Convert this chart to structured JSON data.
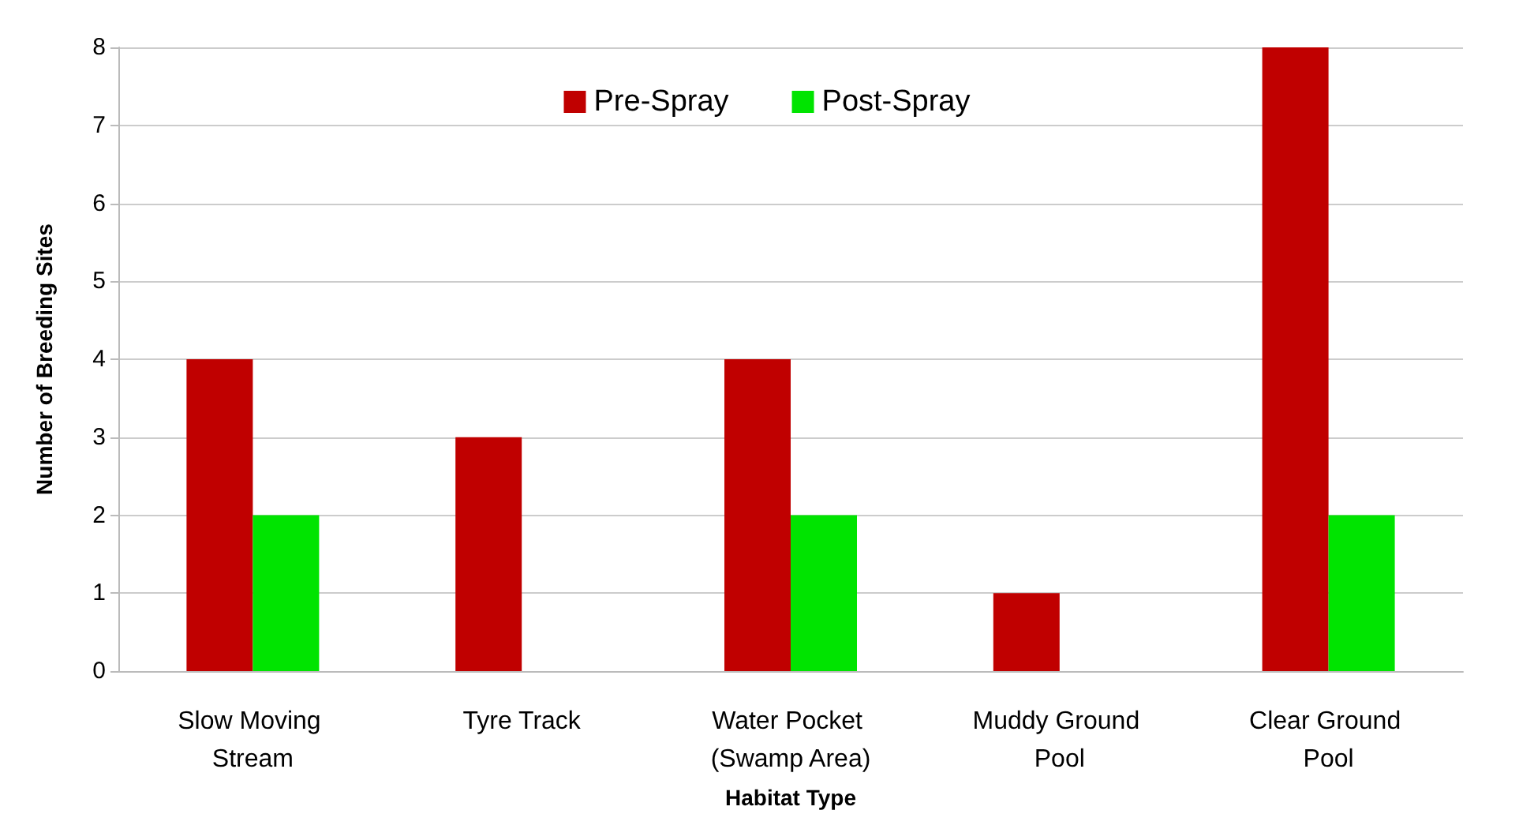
{
  "chart_data": {
    "type": "bar",
    "xlabel": "Habitat Type",
    "ylabel": "Number of Breeding Sites",
    "categories": [
      "Slow Moving Stream",
      "Tyre Track",
      "Water Pocket (Swamp Area)",
      "Muddy Ground Pool",
      "Clear Ground Pool"
    ],
    "series": [
      {
        "name": "Pre-Spray",
        "color": "#c00000",
        "values": [
          4,
          3,
          4,
          1,
          8
        ]
      },
      {
        "name": "Post-Spray",
        "color": "#00e400",
        "values": [
          2,
          0,
          2,
          0,
          2
        ]
      }
    ],
    "ylim": [
      0,
      8
    ],
    "yticks": [
      0,
      1,
      2,
      3,
      4,
      5,
      6,
      7,
      8
    ],
    "grid": "y",
    "legend": "top"
  }
}
